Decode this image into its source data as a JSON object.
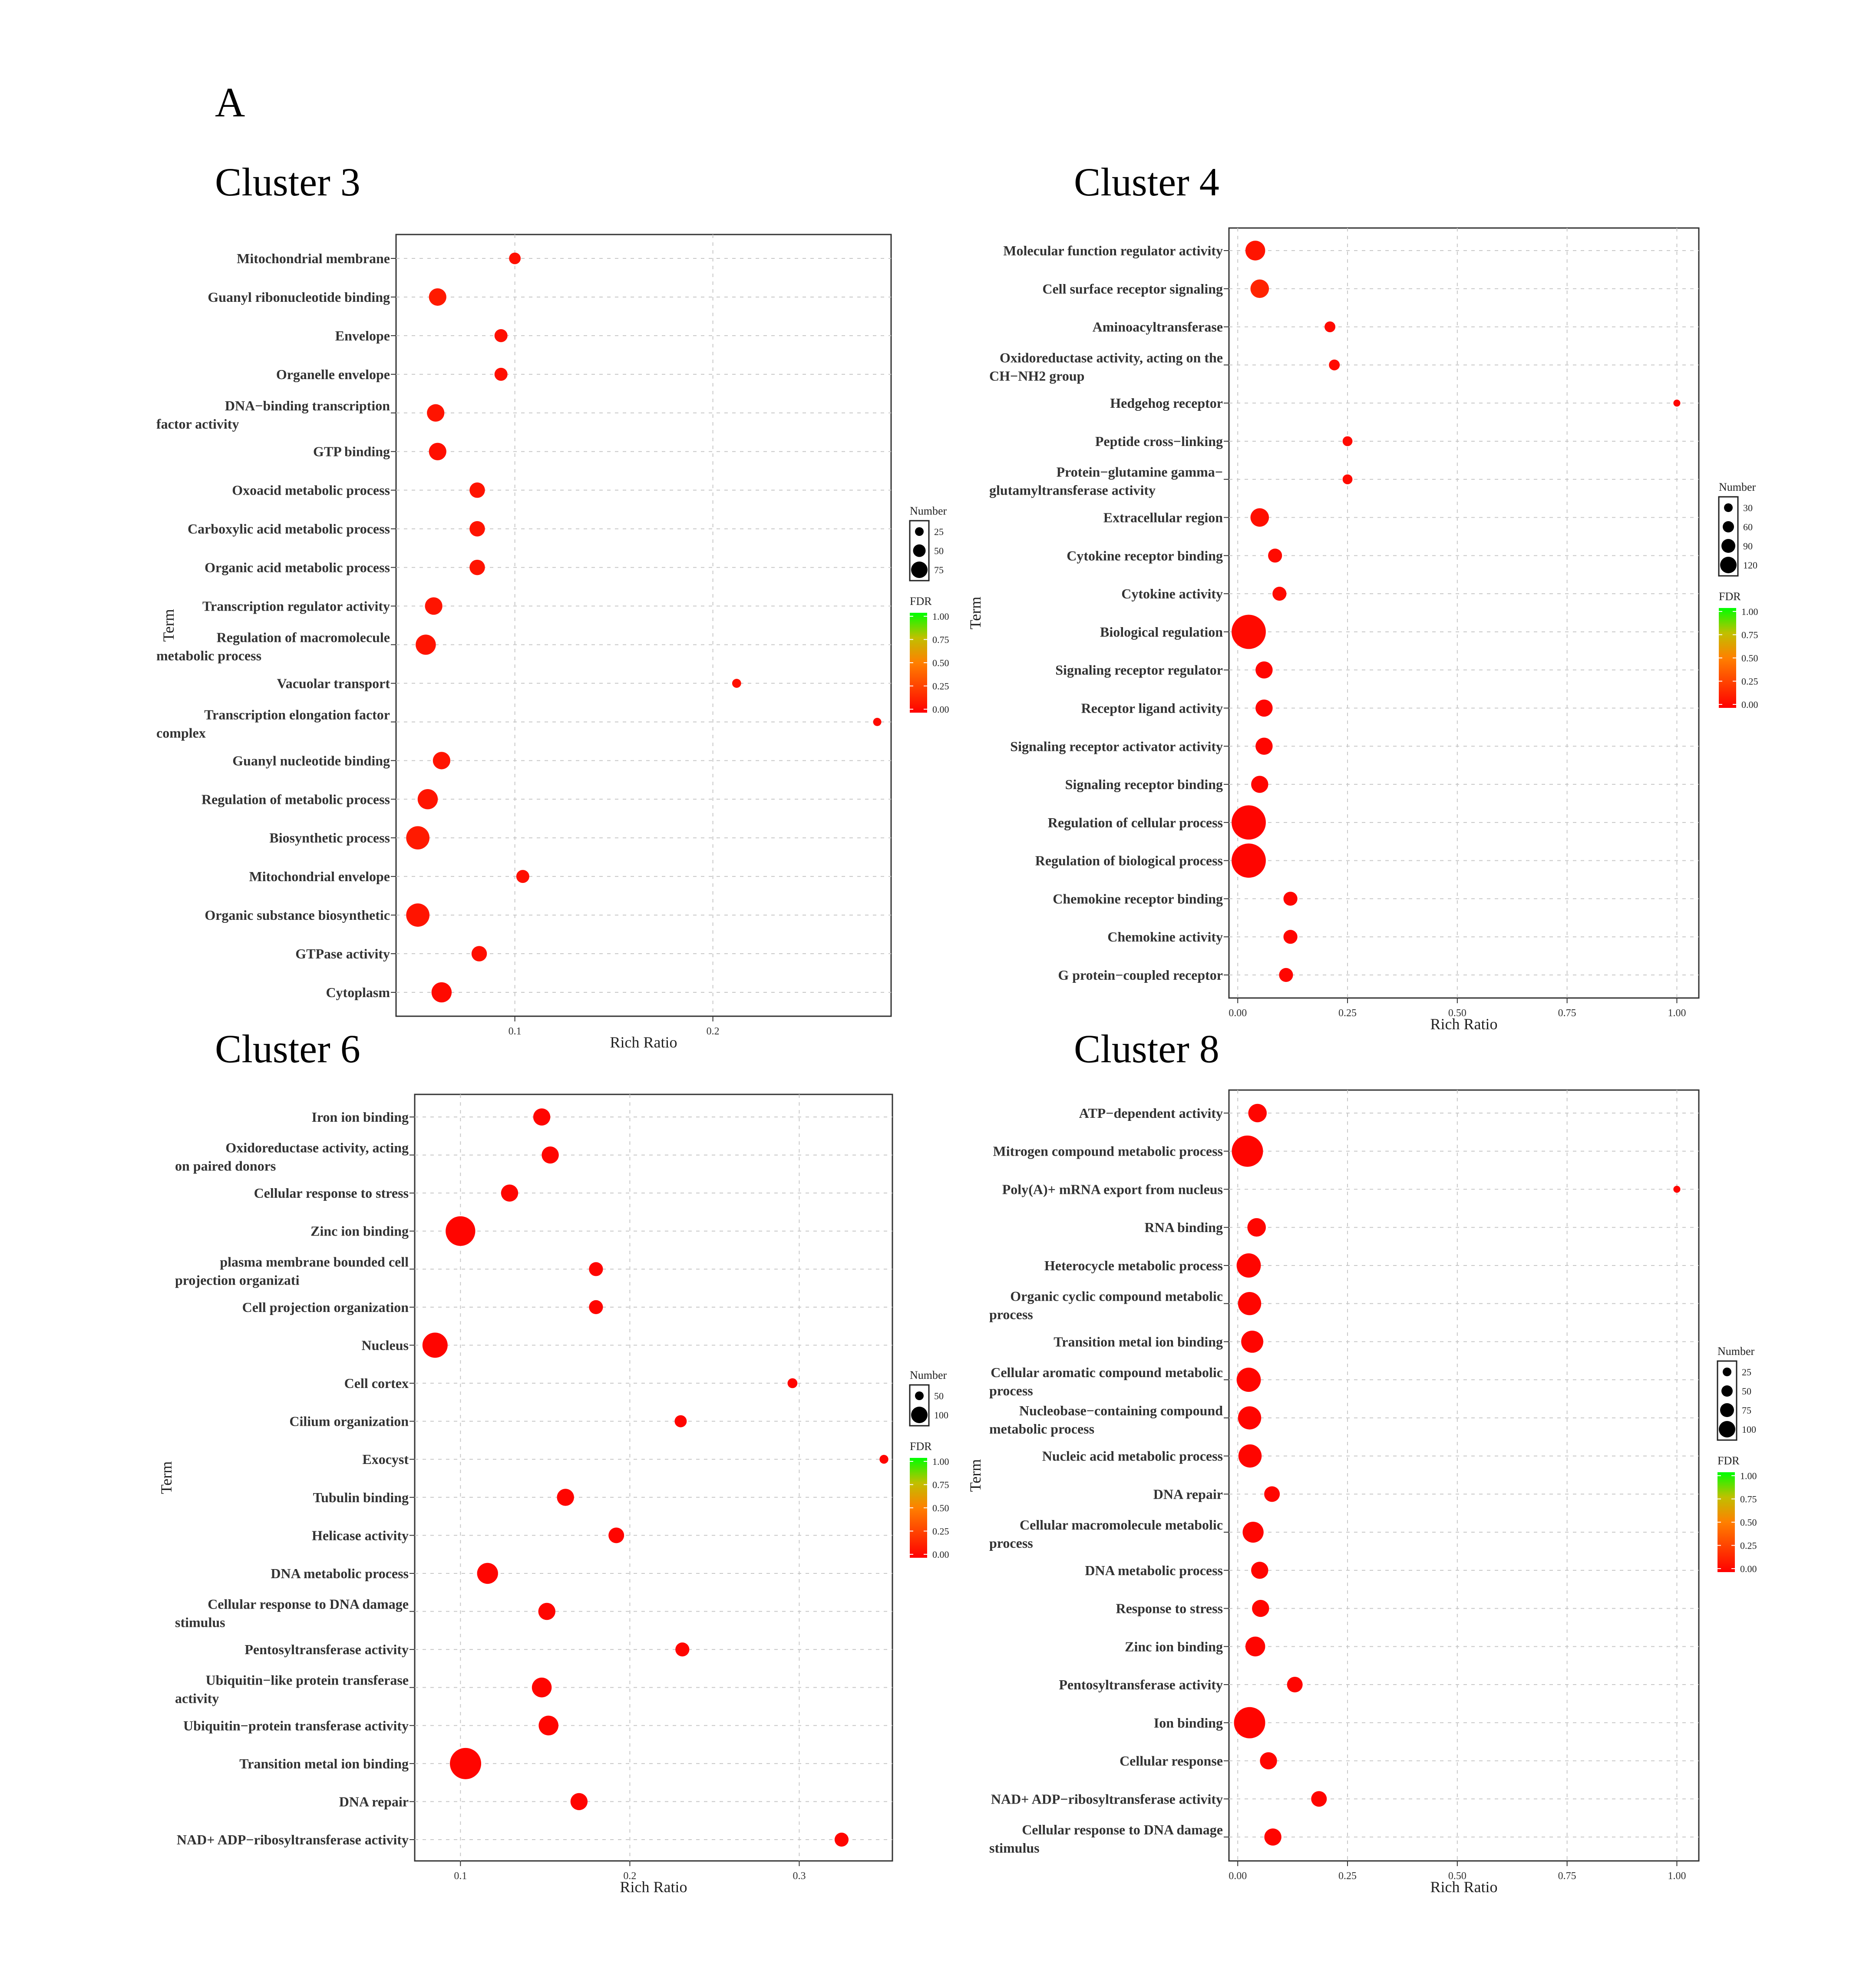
{
  "panel_label": "A",
  "chart_data": [
    {
      "type": "scatter",
      "title": "Cluster 3",
      "xlabel": "Rich Ratio",
      "ylabel": "Term",
      "xlim": [
        0.04,
        0.29
      ],
      "xticks": [
        0.1,
        0.2
      ],
      "xtick_labels": [
        "0.1",
        "0.2"
      ],
      "grid": true,
      "terms": [
        "Mitochondrial membrane",
        "Guanyl ribonucleotide binding",
        "Envelope",
        "Organelle envelope",
        "DNA−binding transcription factor activity",
        "GTP binding",
        "Oxoacid metabolic process",
        "Carboxylic acid metabolic process",
        "Organic acid metabolic process",
        "Transcription regulator activity",
        "Regulation of macromolecule metabolic process",
        "Vacuolar transport",
        "Transcription elongation factor complex",
        "Guanyl nucleotide binding",
        "Regulation of metabolic process",
        "Biosynthetic process",
        "Mitochondrial envelope",
        "Organic substance biosynthetic",
        "GTPase activity",
        "Cytoplasm"
      ],
      "term_lines": [
        [
          "Mitochondrial membrane"
        ],
        [
          "Guanyl ribonucleotide binding"
        ],
        [
          "Envelope"
        ],
        [
          "Organelle envelope"
        ],
        [
          "DNA−binding transcription",
          "factor activity"
        ],
        [
          "GTP binding"
        ],
        [
          "Oxoacid metabolic process"
        ],
        [
          "Carboxylic acid metabolic process"
        ],
        [
          "Organic acid metabolic process"
        ],
        [
          "Transcription regulator activity"
        ],
        [
          "Regulation of macromolecule",
          "metabolic process"
        ],
        [
          "Vacuolar transport"
        ],
        [
          "Transcription elongation factor",
          "complex"
        ],
        [
          "Guanyl nucleotide binding"
        ],
        [
          "Regulation of metabolic process"
        ],
        [
          "Biosynthetic process"
        ],
        [
          "Mitochondrial envelope"
        ],
        [
          "Organic substance biosynthetic"
        ],
        [
          "GTPase activity"
        ],
        [
          "Cytoplasm"
        ]
      ],
      "rich_ratio": [
        0.1,
        0.061,
        0.093,
        0.093,
        0.06,
        0.061,
        0.081,
        0.081,
        0.081,
        0.059,
        0.055,
        0.212,
        0.283,
        0.063,
        0.056,
        0.051,
        0.104,
        0.051,
        0.082,
        0.063
      ],
      "number": [
        20,
        45,
        25,
        25,
        45,
        45,
        35,
        35,
        35,
        45,
        60,
        12,
        10,
        45,
        60,
        80,
        25,
        80,
        35,
        60
      ],
      "fdr": [
        0.06,
        0.1,
        0.06,
        0.06,
        0.08,
        0.06,
        0.08,
        0.08,
        0.08,
        0.08,
        0.08,
        0.06,
        0.04,
        0.08,
        0.08,
        0.1,
        0.06,
        0.08,
        0.06,
        0.04
      ],
      "legend": {
        "size_title": "Number",
        "size_values": [
          25,
          50,
          75
        ],
        "color_title": "FDR",
        "color_ticks": [
          "1.00",
          "0.75",
          "0.50",
          "0.25",
          "0.00"
        ]
      }
    },
    {
      "type": "scatter",
      "title": "Cluster 4",
      "xlabel": "Rich Ratio",
      "ylabel": "Term",
      "xlim": [
        -0.02,
        1.05
      ],
      "xticks": [
        0,
        0.25,
        0.5,
        0.75,
        1
      ],
      "xtick_labels": [
        "0.00",
        "0.25",
        "0.50",
        "0.75",
        "1.00"
      ],
      "grid": true,
      "terms": [
        "Molecular function regulator activity",
        "Cell surface receptor signaling",
        "Aminoacyltransferase",
        "Oxidoreductase activity, acting on the CH−NH2 group",
        "Hedgehog receptor",
        "Peptide cross−linking",
        "Protein−glutamine gamma−glutamyltransferase activity",
        "Extracellular region",
        "Cytokine receptor binding",
        "Cytokine activity",
        "Biological regulation",
        "Signaling receptor regulator",
        "Receptor ligand activity",
        "Signaling receptor activator activity",
        "Signaling receptor binding",
        "Regulation of cellular process",
        "Regulation of biological process",
        "Chemokine receptor binding",
        "Chemokine activity",
        "G protein−coupled receptor"
      ],
      "term_lines": [
        [
          "Molecular function regulator activity"
        ],
        [
          "Cell surface receptor signaling"
        ],
        [
          "Aminoacyltransferase"
        ],
        [
          "Oxidoreductase activity, acting on the",
          "CH−NH2 group"
        ],
        [
          "Hedgehog receptor"
        ],
        [
          "Peptide cross−linking"
        ],
        [
          "Protein−glutamine gamma−",
          "glutamyltransferase activity"
        ],
        [
          "Extracellular region"
        ],
        [
          "Cytokine receptor binding"
        ],
        [
          "Cytokine activity"
        ],
        [
          "Biological regulation"
        ],
        [
          "Signaling receptor regulator"
        ],
        [
          "Receptor ligand activity"
        ],
        [
          "Signaling receptor activator activity"
        ],
        [
          "Signaling receptor binding"
        ],
        [
          "Regulation of cellular process"
        ],
        [
          "Regulation of biological process"
        ],
        [
          "Chemokine receptor binding"
        ],
        [
          "Chemokine activity"
        ],
        [
          "G protein−coupled receptor"
        ]
      ],
      "rich_ratio": [
        0.04,
        0.05,
        0.21,
        0.22,
        1.0,
        0.25,
        0.25,
        0.05,
        0.085,
        0.095,
        0.025,
        0.06,
        0.06,
        0.06,
        0.05,
        0.025,
        0.025,
        0.12,
        0.12,
        0.11
      ],
      "number": [
        40,
        35,
        12,
        12,
        5,
        10,
        10,
        35,
        20,
        20,
        120,
        30,
        30,
        30,
        30,
        120,
        120,
        20,
        20,
        20
      ],
      "fdr": [
        0.08,
        0.14,
        0.04,
        0.04,
        0.02,
        0.04,
        0.04,
        0.06,
        0.04,
        0.04,
        0.04,
        0.02,
        0.02,
        0.02,
        0.02,
        0.02,
        0.02,
        0.02,
        0.02,
        0.02
      ],
      "legend": {
        "size_title": "Number",
        "size_values": [
          30,
          60,
          90,
          120
        ],
        "color_title": "FDR",
        "color_ticks": [
          "1.00",
          "0.75",
          "0.50",
          "0.25",
          "0.00"
        ]
      }
    },
    {
      "type": "scatter",
      "title": "Cluster 6",
      "xlabel": "Rich Ratio",
      "ylabel": "Term",
      "xlim": [
        0.073,
        0.355
      ],
      "xticks": [
        0.1,
        0.2,
        0.3
      ],
      "xtick_labels": [
        "0.1",
        "0.2",
        "0.3"
      ],
      "grid": true,
      "terms": [
        "Iron ion binding",
        "Oxidoreductase activity, acting on paired donors",
        "Cellular response to stress",
        "Zinc ion binding",
        "plasma membrane bounded cell projection organizati",
        "Cell projection organization",
        "Nucleus",
        "Cell cortex",
        "Cilium organization",
        "Exocyst",
        "Tubulin binding",
        "Helicase activity",
        "DNA metabolic process",
        "Cellular response to DNA damage stimulus",
        "Pentosyltransferase activity",
        "Ubiquitin−like protein transferase activity",
        "Ubiquitin−protein transferase activity",
        "Transition metal ion binding",
        "DNA repair",
        "NAD+ ADP−ribosyltransferase activity"
      ],
      "term_lines": [
        [
          "Iron ion binding"
        ],
        [
          "Oxidoreductase activity, acting",
          "on paired donors"
        ],
        [
          "Cellular response to stress"
        ],
        [
          "Zinc ion binding"
        ],
        [
          "plasma membrane bounded cell",
          "projection organizati"
        ],
        [
          "Cell projection organization"
        ],
        [
          "Nucleus"
        ],
        [
          "Cell cortex"
        ],
        [
          "Cilium organization"
        ],
        [
          "Exocyst"
        ],
        [
          "Tubulin binding"
        ],
        [
          "Helicase activity"
        ],
        [
          "DNA metabolic process"
        ],
        [
          "Cellular response to DNA damage",
          "stimulus"
        ],
        [
          "Pentosyltransferase activity"
        ],
        [
          "Ubiquitin−like protein transferase",
          "activity"
        ],
        [
          "Ubiquitin−protein transferase activity"
        ],
        [
          "Transition metal ion binding"
        ],
        [
          "DNA repair"
        ],
        [
          "NAD+ ADP−ribosyltransferase activity"
        ]
      ],
      "rich_ratio": [
        0.148,
        0.153,
        0.129,
        0.1,
        0.18,
        0.18,
        0.085,
        0.296,
        0.23,
        0.35,
        0.162,
        0.192,
        0.116,
        0.151,
        0.231,
        0.148,
        0.152,
        0.103,
        0.17,
        0.325
      ],
      "number": [
        30,
        30,
        30,
        90,
        20,
        20,
        65,
        10,
        15,
        8,
        30,
        25,
        45,
        30,
        20,
        40,
        40,
        100,
        30,
        20
      ],
      "fdr": [
        0.02,
        0.02,
        0.02,
        0.02,
        0.02,
        0.02,
        0.02,
        0.02,
        0.02,
        0.02,
        0.02,
        0.02,
        0.02,
        0.02,
        0.02,
        0.02,
        0.02,
        0.02,
        0.02,
        0.02
      ],
      "legend": {
        "size_title": "Number",
        "size_values": [
          50,
          100
        ],
        "color_title": "FDR",
        "color_ticks": [
          "1.00",
          "0.75",
          "0.50",
          "0.25",
          "0.00"
        ]
      }
    },
    {
      "type": "scatter",
      "title": "Cluster 8",
      "xlabel": "Rich Ratio",
      "ylabel": "Term",
      "xlim": [
        -0.02,
        1.05
      ],
      "xticks": [
        0,
        0.25,
        0.5,
        0.75,
        1
      ],
      "xtick_labels": [
        "0.00",
        "0.25",
        "0.50",
        "0.75",
        "1.00"
      ],
      "grid": true,
      "terms": [
        "ATP−dependent activity",
        "Mitrogen compound metabolic process",
        "Poly(A)+ mRNA export from nucleus",
        "RNA binding",
        "Heterocycle metabolic process",
        "Organic cyclic compound metabolic process",
        "Transition metal ion binding",
        "Cellular aromatic compound metabolic process",
        "Nucleobase−containing compound metabolic process",
        "Nucleic acid metabolic process",
        "DNA repair",
        "Cellular macromolecule metabolic process",
        "DNA metabolic process",
        "Response to stress",
        "Zinc ion binding",
        "Pentosyltransferase activity",
        "Ion binding",
        "Cellular response",
        "NAD+ ADP−ribosyltransferase activity",
        "Cellular response to DNA damage stimulus"
      ],
      "term_lines": [
        [
          "ATP−dependent activity"
        ],
        [
          "Mitrogen compound metabolic process"
        ],
        [
          "Poly(A)+ mRNA export from nucleus"
        ],
        [
          "RNA binding"
        ],
        [
          "Heterocycle metabolic process"
        ],
        [
          "Organic cyclic compound metabolic",
          "process"
        ],
        [
          "Transition metal ion binding"
        ],
        [
          "Cellular aromatic compound metabolic",
          "process"
        ],
        [
          "Nucleobase−containing compound",
          "metabolic process"
        ],
        [
          "Nucleic acid metabolic process"
        ],
        [
          "DNA repair"
        ],
        [
          "Cellular macromolecule metabolic",
          "process"
        ],
        [
          "DNA metabolic process"
        ],
        [
          "Response to stress"
        ],
        [
          "Zinc ion binding"
        ],
        [
          "Pentosyltransferase activity"
        ],
        [
          "Ion binding"
        ],
        [
          "Cellular response"
        ],
        [
          "NAD+ ADP−ribosyltransferase activity"
        ],
        [
          "Cellular response to DNA damage",
          "stimulus"
        ]
      ],
      "rich_ratio": [
        0.045,
        0.022,
        1.0,
        0.043,
        0.025,
        0.027,
        0.033,
        0.025,
        0.027,
        0.028,
        0.078,
        0.035,
        0.05,
        0.052,
        0.04,
        0.13,
        0.027,
        0.07,
        0.185,
        0.08
      ],
      "number": [
        35,
        100,
        5,
        35,
        60,
        55,
        50,
        60,
        55,
        55,
        25,
        45,
        30,
        30,
        40,
        25,
        100,
        30,
        25,
        30
      ],
      "fdr": [
        0.02,
        0.02,
        0.02,
        0.02,
        0.02,
        0.02,
        0.02,
        0.02,
        0.02,
        0.02,
        0.02,
        0.02,
        0.02,
        0.02,
        0.02,
        0.02,
        0.02,
        0.02,
        0.02,
        0.02
      ],
      "legend": {
        "size_title": "Number",
        "size_values": [
          25,
          50,
          75,
          100
        ],
        "color_title": "FDR",
        "color_ticks": [
          "1.00",
          "0.75",
          "0.50",
          "0.25",
          "0.00"
        ]
      }
    }
  ]
}
